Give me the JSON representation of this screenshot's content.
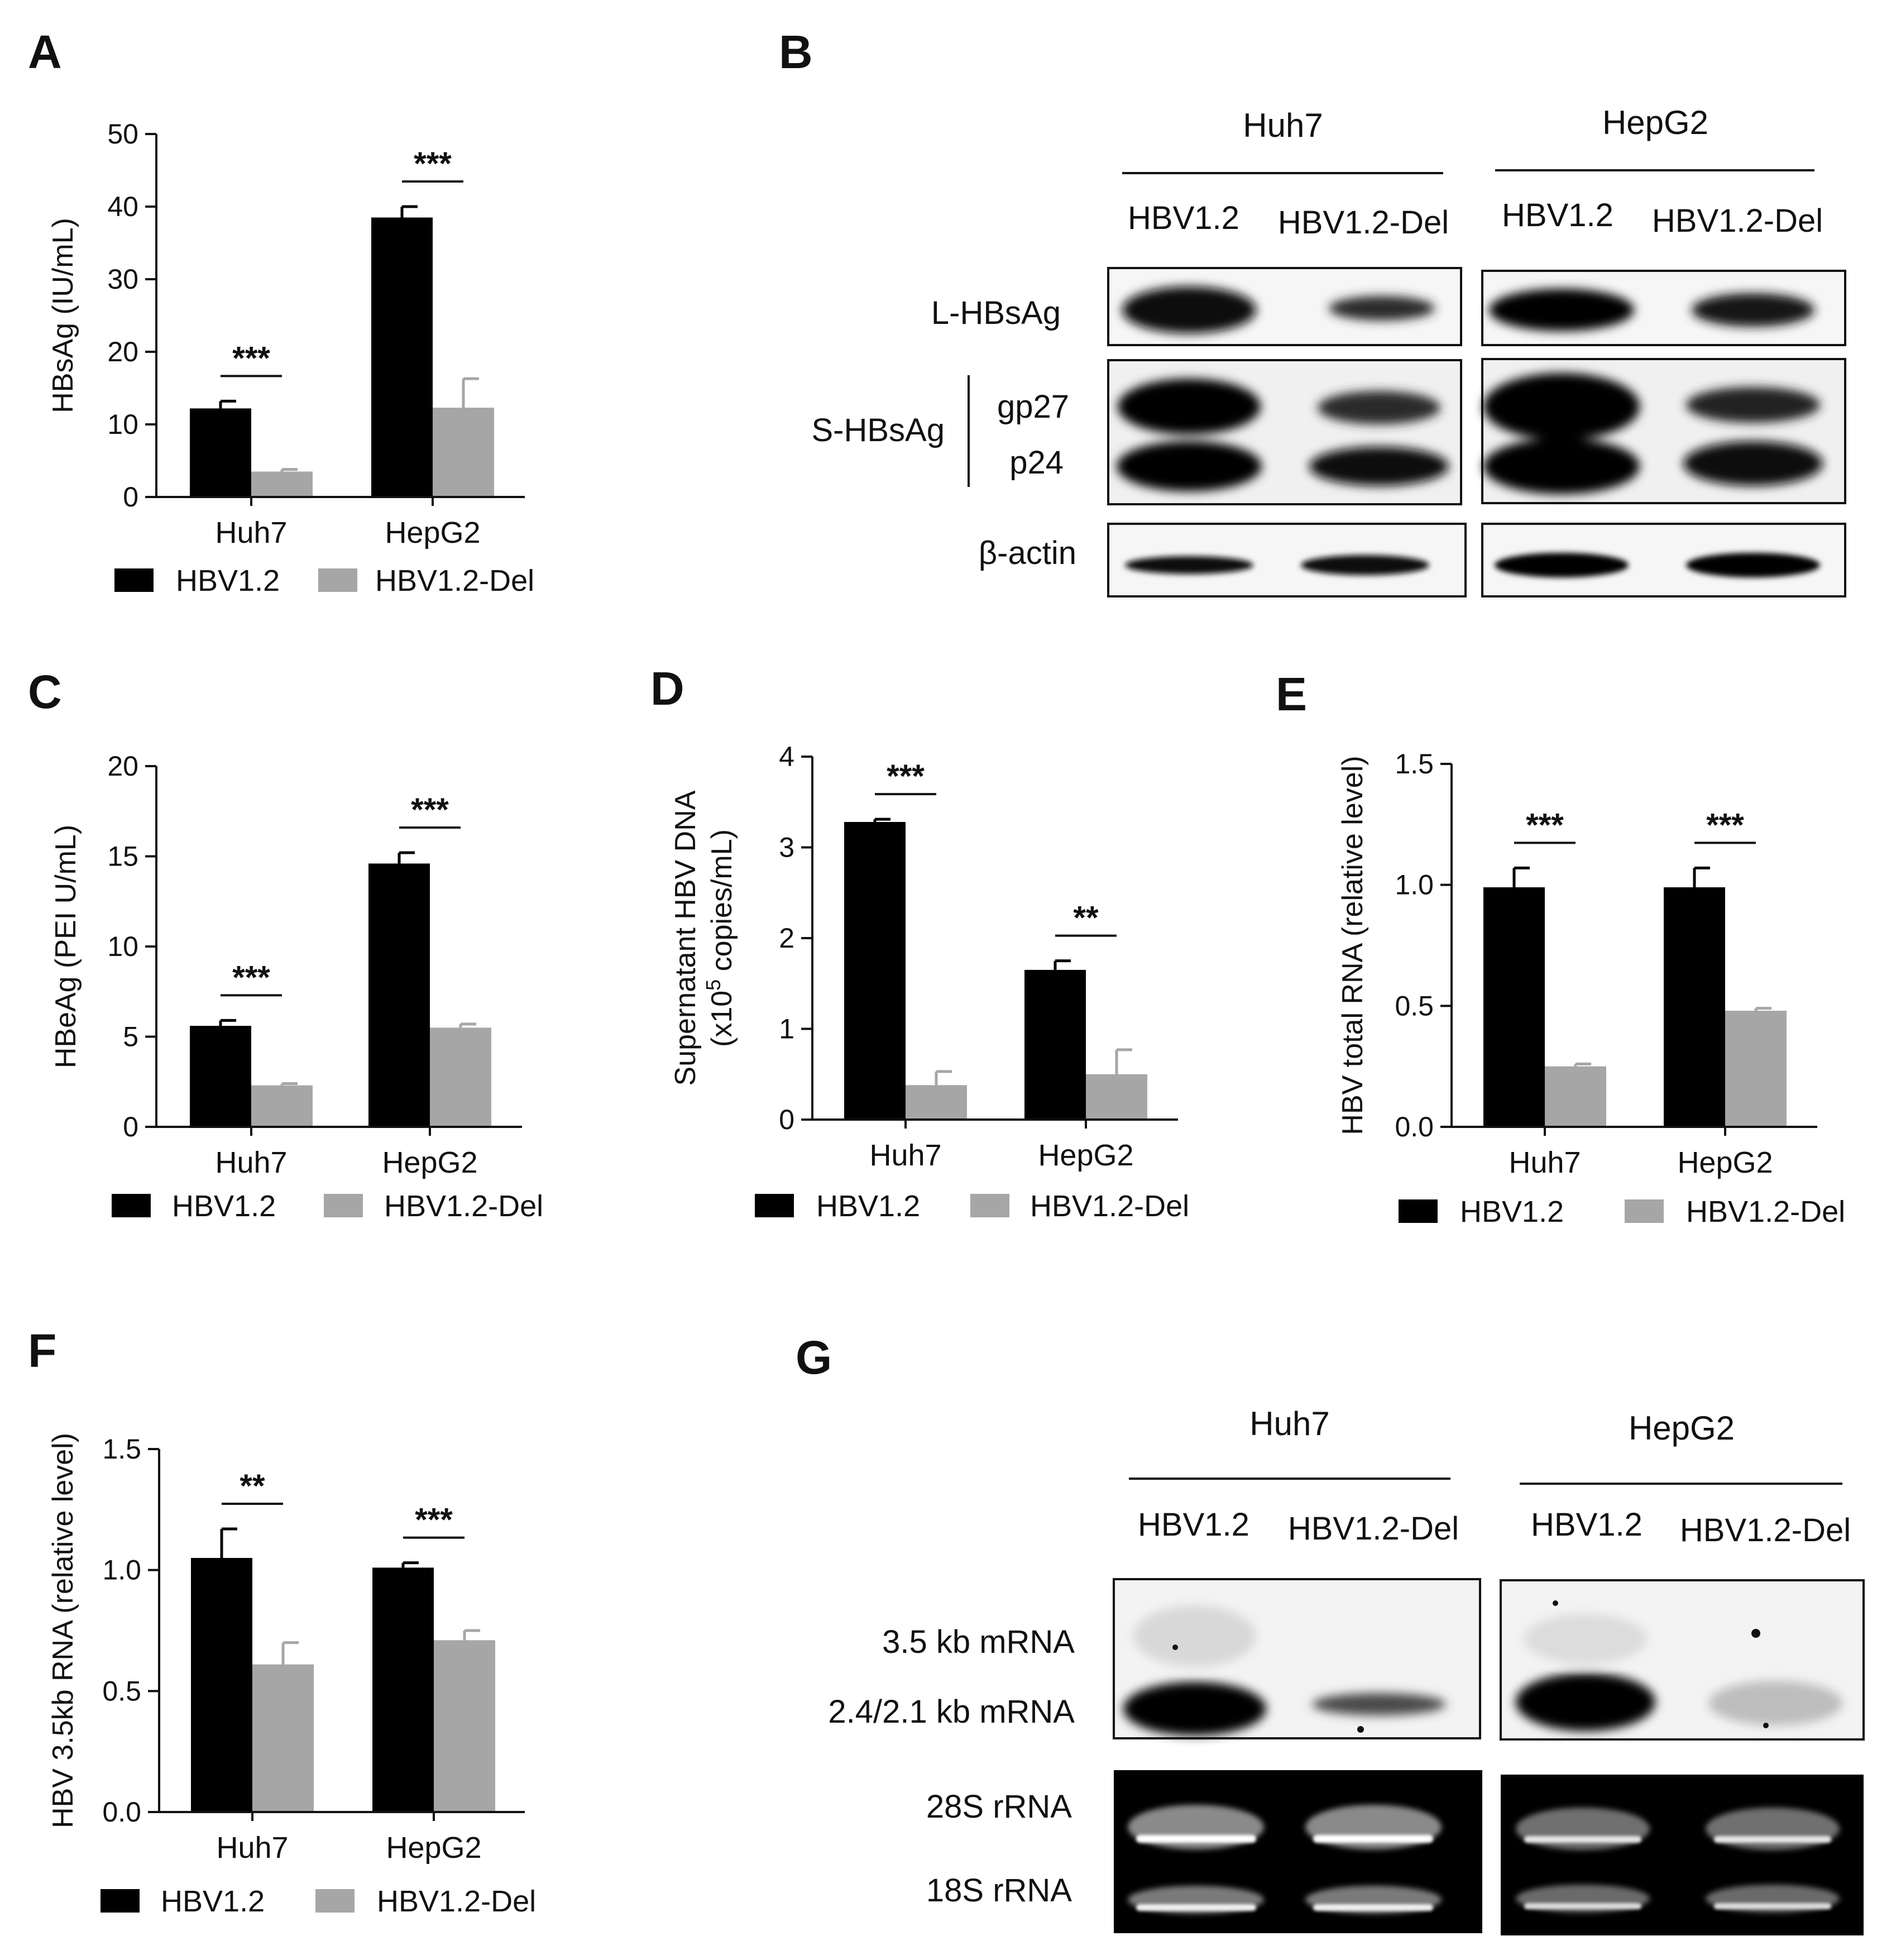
{
  "colors": {
    "hbv12": "#000000",
    "hbv12del": "#a6a6a6",
    "axis": "#111111"
  },
  "legend": [
    "HBV1.2",
    "HBV1.2-Del"
  ],
  "panels": {
    "A": {
      "letter": "A"
    },
    "B": {
      "letter": "B",
      "cells": [
        "Huh7",
        "HepG2"
      ],
      "lanes": [
        "HBV1.2",
        "HBV1.2-Del",
        "HBV1.2",
        "HBV1.2-Del"
      ],
      "labels": {
        "l_hbsag": "L-HBsAg",
        "s_hbsag": "S-HBsAg",
        "gp27": "gp27",
        "p24": "p24",
        "actin": "β-actin"
      }
    },
    "C": {
      "letter": "C"
    },
    "D": {
      "letter": "D"
    },
    "E": {
      "letter": "E"
    },
    "F": {
      "letter": "F"
    },
    "G": {
      "letter": "G",
      "cells": [
        "Huh7",
        "HepG2"
      ],
      "lanes": [
        "HBV1.2",
        "HBV1.2-Del",
        "HBV1.2",
        "HBV1.2-Del"
      ],
      "labels": {
        "mrna35": "3.5 kb mRNA",
        "mrna24": "2.4/2.1 kb mRNA",
        "r28s": "28S rRNA",
        "r18s": "18S rRNA"
      }
    }
  },
  "chart_data": [
    {
      "panel": "A",
      "type": "bar",
      "categories": [
        "Huh7",
        "HepG2"
      ],
      "series": [
        {
          "name": "HBV1.2",
          "values": [
            12.2,
            38.5
          ],
          "errors": [
            1.0,
            1.5
          ]
        },
        {
          "name": "HBV1.2-Del",
          "values": [
            3.5,
            12.3
          ],
          "errors": [
            0.3,
            4.0
          ]
        }
      ],
      "ylabel": "HBsAg (IU/mL)",
      "ylim": [
        0,
        50
      ],
      "yticks": [
        "0",
        "10",
        "20",
        "30",
        "40",
        "50"
      ],
      "significance": [
        "***",
        "***"
      ]
    },
    {
      "panel": "C",
      "type": "bar",
      "categories": [
        "Huh7",
        "HepG2"
      ],
      "series": [
        {
          "name": "HBV1.2",
          "values": [
            5.6,
            14.6
          ],
          "errors": [
            0.3,
            0.6
          ]
        },
        {
          "name": "HBV1.2-Del",
          "values": [
            2.3,
            5.5
          ],
          "errors": [
            0.1,
            0.2
          ]
        }
      ],
      "ylabel": "HBeAg (PEI U/mL)",
      "ylim": [
        0,
        20
      ],
      "yticks": [
        "0",
        "5",
        "10",
        "15",
        "20"
      ],
      "significance": [
        "***",
        "***"
      ]
    },
    {
      "panel": "D",
      "type": "bar",
      "categories": [
        "Huh7",
        "HepG2"
      ],
      "series": [
        {
          "name": "HBV1.2",
          "values": [
            3.28,
            1.65
          ],
          "errors": [
            0.03,
            0.1
          ]
        },
        {
          "name": "HBV1.2-Del",
          "values": [
            0.38,
            0.5
          ],
          "errors": [
            0.15,
            0.27
          ]
        }
      ],
      "ylabel_line1": "Supernatant HBV DNA",
      "ylabel_line2_a": "(x10",
      "ylabel_line2_sup": "5",
      "ylabel_line2_b": " copies/mL)",
      "ylim": [
        0,
        4
      ],
      "yticks": [
        "0",
        "1",
        "2",
        "3",
        "4"
      ],
      "significance": [
        "***",
        "**"
      ]
    },
    {
      "panel": "E",
      "type": "bar",
      "categories": [
        "Huh7",
        "HepG2"
      ],
      "series": [
        {
          "name": "HBV1.2",
          "values": [
            0.99,
            0.99
          ],
          "errors": [
            0.08,
            0.08
          ]
        },
        {
          "name": "HBV1.2-Del",
          "values": [
            0.25,
            0.48
          ],
          "errors": [
            0.01,
            0.01
          ]
        }
      ],
      "ylabel": "HBV total RNA (relative level)",
      "ylim": [
        0,
        1.5
      ],
      "yticks": [
        "0.0",
        "0.5",
        "1.0",
        "1.5"
      ],
      "significance": [
        "***",
        "***"
      ]
    },
    {
      "panel": "F",
      "type": "bar",
      "categories": [
        "Huh7",
        "HepG2"
      ],
      "series": [
        {
          "name": "HBV1.2",
          "values": [
            1.05,
            1.01
          ],
          "errors": [
            0.12,
            0.02
          ]
        },
        {
          "name": "HBV1.2-Del",
          "values": [
            0.61,
            0.71
          ],
          "errors": [
            0.09,
            0.04
          ]
        }
      ],
      "ylabel": "HBV 3.5kb RNA (relative level)",
      "ylim": [
        0,
        1.5
      ],
      "yticks": [
        "0.0",
        "0.5",
        "1.0",
        "1.5"
      ],
      "significance": [
        "**",
        "***"
      ]
    }
  ]
}
